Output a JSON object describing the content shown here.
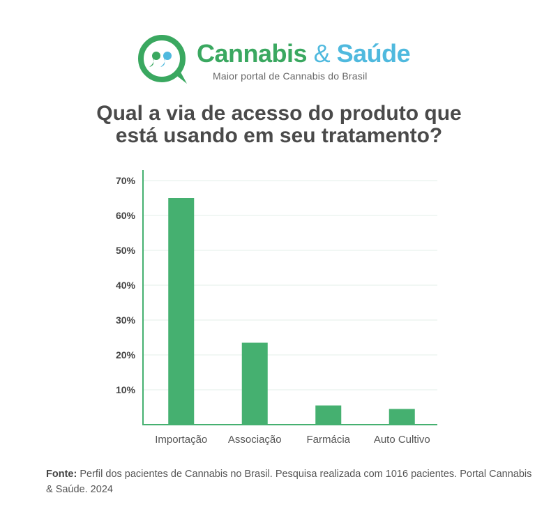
{
  "brand": {
    "part1": "Cannabis",
    "amp": "&",
    "part2": "Saúde",
    "tagline": "Maior portal de Cannabis do Brasil",
    "accent_green": "#3aa860",
    "accent_blue": "#4fb9de"
  },
  "title": {
    "line1": "Qual a via de acesso do produto que",
    "line2": "está usando em seu tratamento?"
  },
  "chart_data": {
    "type": "bar",
    "categories": [
      "Importação",
      "Associação",
      "Farmácia",
      "Auto Cultivo"
    ],
    "values": [
      65,
      23.5,
      5.5,
      4.5
    ],
    "yticks": [
      10,
      20,
      30,
      40,
      50,
      60,
      70
    ],
    "ytick_labels": [
      "10%",
      "20%",
      "30%",
      "40%",
      "50%",
      "60%",
      "70%"
    ],
    "ylim": [
      0,
      71
    ],
    "grid": true,
    "bar_color": "#45b070",
    "axis_color": "#45b070"
  },
  "source": {
    "label": "Fonte:",
    "text": "Perfil dos pacientes de Cannabis no Brasil. Pesquisa realizada com 1016 pacientes. Portal Cannabis & Saúde. 2024"
  }
}
